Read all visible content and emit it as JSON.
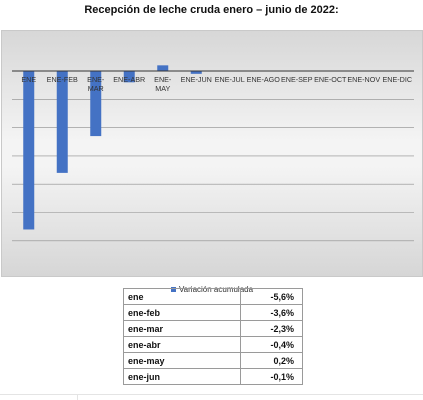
{
  "title": "Recepción de leche cruda enero – junio de 2022:",
  "chart_data": {
    "type": "bar",
    "categories": [
      "ENE",
      "ENE-FEB",
      "ENE-MAR",
      "ENE-ABR",
      "ENE-MAY",
      "ENE-JUN",
      "ENE-JUL",
      "ENE-AGO",
      "ENE-SEP",
      "ENE-OCT",
      "ENE-NOV",
      "ENE-DIC"
    ],
    "series": [
      {
        "name": "Variación acumulada",
        "values": [
          -5.6,
          -3.6,
          -2.3,
          -0.4,
          0.2,
          -0.1,
          null,
          null,
          null,
          null,
          null,
          null
        ],
        "color": "#4472c4"
      }
    ],
    "ylim": [
      -6,
      0.5
    ],
    "grid": true,
    "legend": "bottom"
  },
  "table": {
    "rows": [
      {
        "label": "ene",
        "value": "-5,6%"
      },
      {
        "label": "ene-feb",
        "value": "-3,6%"
      },
      {
        "label": "ene-mar",
        "value": "-2,3%"
      },
      {
        "label": "ene-abr",
        "value": "-0,4%"
      },
      {
        "label": "ene-may",
        "value": "0,2%"
      },
      {
        "label": "ene-jun",
        "value": "-0,1%"
      }
    ]
  }
}
